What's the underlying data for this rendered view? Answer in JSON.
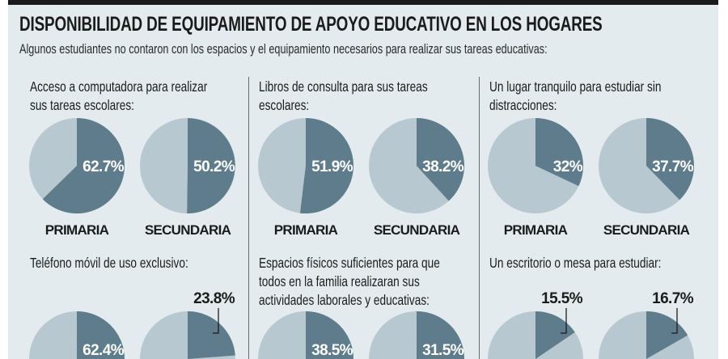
{
  "title": "DISPONIBILIDAD DE EQUIPAMIENTO DE APOYO EDUCATIVO EN LOS HOGARES",
  "subtitle": "Algunos estudiantes no contaron con los espacios y el equipamiento necesarios para realizar sus tareas educativas:",
  "colors": {
    "background": "#e4ebee",
    "slice_dark": "#5e7c8c",
    "slice_light": "#b8c8d1",
    "label_inside": "#ffffff",
    "text": "#1b1b1b"
  },
  "chart_data": [
    {
      "type": "pie",
      "title_lines": [
        "Acceso a computadora para realizar",
        "sus tareas escolares:"
      ],
      "pies": [
        {
          "label": "PRIMARIA",
          "value": 62.7,
          "value_label": "62.7%"
        },
        {
          "label": "SECUNDARIA",
          "value": 50.2,
          "value_label": "50.2%"
        }
      ]
    },
    {
      "type": "pie",
      "title_lines": [
        "Libros de consulta para sus tareas",
        "escolares:"
      ],
      "pies": [
        {
          "label": "PRIMARIA",
          "value": 51.9,
          "value_label": "51.9%"
        },
        {
          "label": "SECUNDARIA",
          "value": 38.2,
          "value_label": "38.2%"
        }
      ]
    },
    {
      "type": "pie",
      "title_lines": [
        "Un lugar tranquilo para estudiar sin",
        "distracciones:"
      ],
      "pies": [
        {
          "label": "PRIMARIA",
          "value": 32,
          "value_label": "32%"
        },
        {
          "label": "SECUNDARIA",
          "value": 37.7,
          "value_label": "37.7%"
        }
      ]
    },
    {
      "type": "pie",
      "title_lines": [
        "Teléfono móvil de uso exclusivo:"
      ],
      "pies": [
        {
          "value": 62.4,
          "value_label": "62.4%"
        },
        {
          "value": 23.8,
          "value_label": "23.8%"
        }
      ]
    },
    {
      "type": "pie",
      "title_lines": [
        "Espacios físicos suficientes para que",
        "todos en la familia realizaran sus",
        "actividades laborales y educativas:"
      ],
      "pies": [
        {
          "value": 38.5,
          "value_label": "38.5%"
        },
        {
          "value": 31.5,
          "value_label": "31.5%"
        }
      ]
    },
    {
      "type": "pie",
      "title_lines": [
        "Un escritorio o mesa para estudiar:"
      ],
      "pies": [
        {
          "value": 15.5,
          "value_label": "15.5%"
        },
        {
          "value": 16.7,
          "value_label": "16.7%"
        }
      ]
    }
  ]
}
